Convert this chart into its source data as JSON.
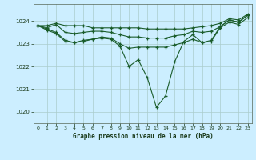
{
  "title": "Graphe pression niveau de la mer (hPa)",
  "background_color": "#cceeff",
  "line_color": "#1a5c2a",
  "grid_color": "#aacccc",
  "x_ticks": [
    0,
    1,
    2,
    3,
    4,
    5,
    6,
    7,
    8,
    9,
    10,
    11,
    12,
    13,
    14,
    15,
    16,
    17,
    18,
    19,
    20,
    21,
    22,
    23
  ],
  "y_ticks": [
    1020,
    1021,
    1022,
    1023,
    1024
  ],
  "ylim": [
    1019.5,
    1024.75
  ],
  "xlim": [
    -0.5,
    23.5
  ],
  "line1": [
    1023.8,
    1023.8,
    1023.9,
    1023.8,
    1023.8,
    1023.8,
    1023.7,
    1023.7,
    1023.7,
    1023.7,
    1023.7,
    1023.7,
    1023.65,
    1023.65,
    1023.65,
    1023.65,
    1023.65,
    1023.7,
    1023.75,
    1023.8,
    1023.9,
    1024.1,
    1024.05,
    1024.3
  ],
  "line2": [
    1023.8,
    1023.7,
    1023.85,
    1023.5,
    1023.45,
    1023.5,
    1023.55,
    1023.55,
    1023.5,
    1023.4,
    1023.3,
    1023.3,
    1023.25,
    1023.25,
    1023.25,
    1023.35,
    1023.4,
    1023.55,
    1023.5,
    1023.55,
    1023.75,
    1024.05,
    1023.95,
    1024.25
  ],
  "line3": [
    1023.8,
    1023.65,
    1023.5,
    1023.15,
    1023.05,
    1023.15,
    1023.2,
    1023.3,
    1023.25,
    1023.0,
    1022.8,
    1022.85,
    1022.85,
    1022.85,
    1022.85,
    1022.95,
    1023.05,
    1023.2,
    1023.05,
    1023.1,
    1023.7,
    1023.95,
    1023.85,
    1024.15
  ],
  "line4": [
    1023.8,
    1023.6,
    1023.45,
    1023.1,
    1023.05,
    1023.1,
    1023.2,
    1023.25,
    1023.2,
    1022.9,
    1022.0,
    1022.3,
    1021.5,
    1020.2,
    1020.7,
    1022.2,
    1023.1,
    1023.4,
    1023.05,
    1023.15,
    1023.75,
    1024.05,
    1023.95,
    1024.25
  ]
}
